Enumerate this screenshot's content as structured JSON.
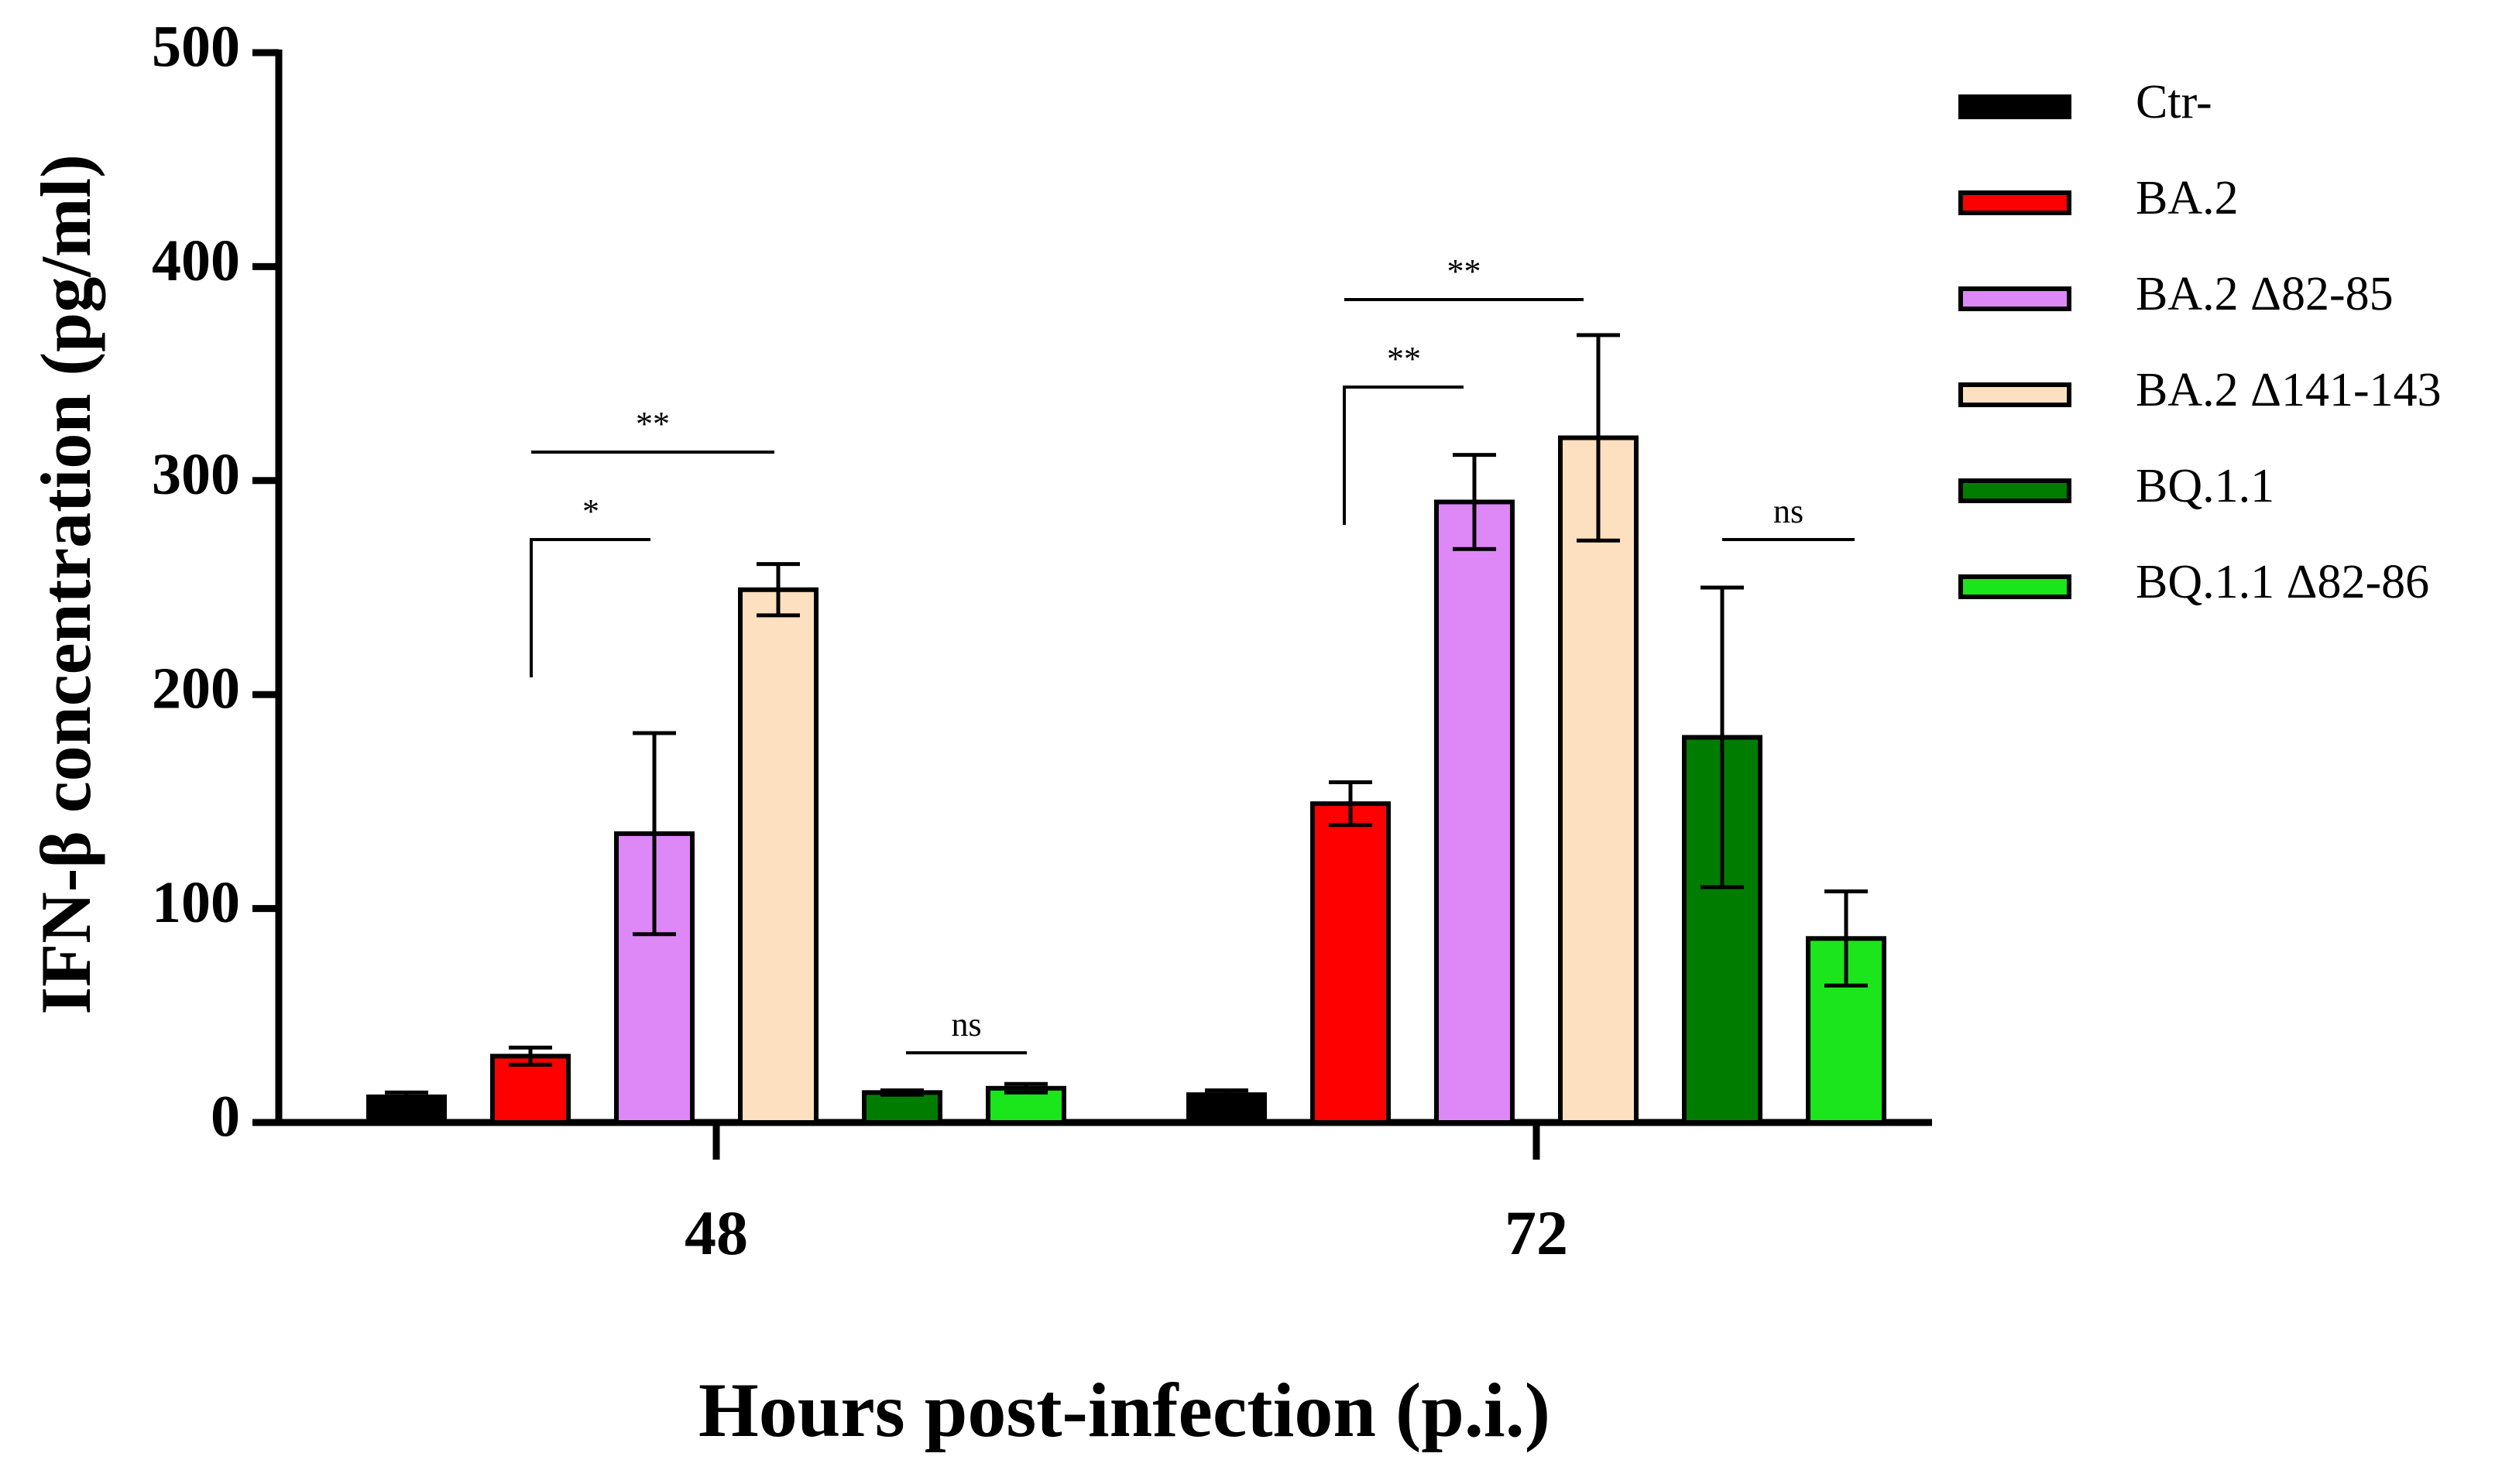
{
  "chart_data": {
    "type": "bar",
    "title": "",
    "xlabel": "Hours post-infection (p.i.)",
    "ylabel": "IFN-β concentration (pg/ml)",
    "ylim": [
      0,
      500
    ],
    "yticks": [
      0,
      100,
      200,
      300,
      400,
      500
    ],
    "grid": false,
    "legend_position": "right",
    "categories": [
      "48",
      "72"
    ],
    "series": [
      {
        "name": "Ctr-",
        "color": "#000000",
        "values": [
          12,
          13
        ],
        "errors": [
          2,
          2
        ]
      },
      {
        "name": "BA.2",
        "color": "#ff0000",
        "values": [
          31,
          149
        ],
        "errors": [
          4,
          10
        ]
      },
      {
        "name": "BA.2 Δ82-85",
        "color": "#dd88f6",
        "values": [
          135,
          290
        ],
        "errors": [
          47,
          22
        ]
      },
      {
        "name": "BA.2 Δ141-143",
        "color": "#fde0c0",
        "values": [
          249,
          320
        ],
        "errors": [
          12,
          48
        ]
      },
      {
        "name": "BQ.1.1",
        "color": "#007d00",
        "values": [
          14,
          180
        ],
        "errors": [
          1,
          70
        ]
      },
      {
        "name": "BQ.1.1 Δ82-86",
        "color": "#1be51b",
        "values": [
          16,
          86
        ],
        "errors": [
          2,
          22
        ]
      }
    ],
    "annotations": [
      {
        "group": 0,
        "from_series": 1,
        "to_series": 2,
        "label": "*"
      },
      {
        "group": 0,
        "from_series": 1,
        "to_series": 3,
        "label": "**"
      },
      {
        "group": 0,
        "from_series": 4,
        "to_series": 5,
        "label": "ns"
      },
      {
        "group": 1,
        "from_series": 1,
        "to_series": 2,
        "label": "**"
      },
      {
        "group": 1,
        "from_series": 1,
        "to_series": 3,
        "label": "**"
      },
      {
        "group": 1,
        "from_series": 4,
        "to_series": 5,
        "label": "ns"
      }
    ]
  }
}
